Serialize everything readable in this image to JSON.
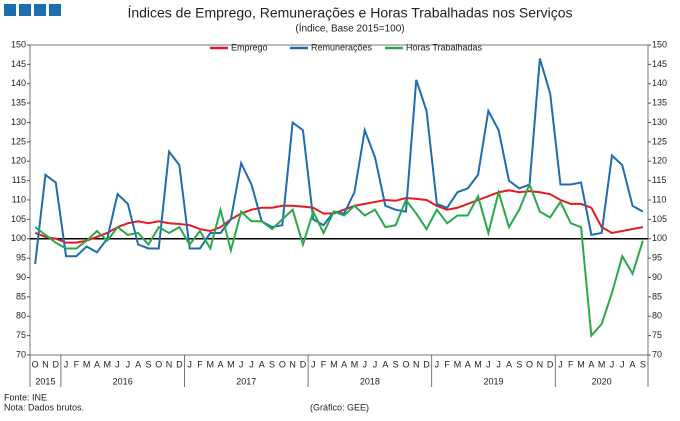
{
  "chart_data": {
    "type": "line",
    "title": "Índices de Emprego, Remunerações e Horas Trabalhadas nos Serviços",
    "subtitle": "(Índice, Base 2015=100)",
    "categories": [
      "O",
      "N",
      "D",
      "J",
      "F",
      "M",
      "A",
      "M",
      "J",
      "J",
      "A",
      "S",
      "O",
      "N",
      "D",
      "J",
      "F",
      "M",
      "A",
      "M",
      "J",
      "J",
      "A",
      "S",
      "O",
      "N",
      "D",
      "J",
      "F",
      "M",
      "A",
      "M",
      "J",
      "J",
      "A",
      "S",
      "O",
      "N",
      "D",
      "J",
      "F",
      "M",
      "A",
      "M",
      "J",
      "J",
      "A",
      "S",
      "O",
      "N",
      "D",
      "J",
      "F",
      "M",
      "A",
      "M",
      "J",
      "J",
      "A",
      "S"
    ],
    "year_labels": [
      "2015",
      null,
      null,
      "2016",
      null,
      null,
      null,
      null,
      null,
      null,
      null,
      null,
      null,
      null,
      null,
      "2017",
      null,
      null,
      null,
      null,
      null,
      null,
      null,
      null,
      null,
      null,
      null,
      "2018",
      null,
      null,
      null,
      null,
      null,
      null,
      null,
      null,
      null,
      null,
      null,
      "2019",
      null,
      null,
      null,
      null,
      null,
      null,
      null,
      null,
      null,
      null,
      null,
      "2020",
      null,
      null,
      null,
      null,
      null,
      null,
      null,
      null
    ],
    "series": [
      {
        "name": "Emprego",
        "color": "#e8191c",
        "values": [
          101.5,
          100.5,
          100,
          99,
          99,
          99.5,
          100.5,
          101.5,
          103,
          104,
          104.5,
          104,
          104.5,
          104,
          103.8,
          103.5,
          102.5,
          102,
          103,
          105,
          106.5,
          107.5,
          108,
          108,
          108.5,
          108.5,
          108.3,
          108,
          106.5,
          106.5,
          107.5,
          108.5,
          109,
          109.5,
          110,
          109.8,
          110.5,
          110.3,
          110,
          108.5,
          107.5,
          108,
          109,
          110,
          111,
          112,
          112.5,
          112,
          112.3,
          112,
          111.5,
          110,
          109,
          109,
          108,
          103,
          101.5,
          102,
          102.5,
          103
        ]
      },
      {
        "name": "Remunerações",
        "color": "#1f6cb0",
        "values": [
          93.5,
          116.5,
          114.5,
          95.5,
          95.5,
          98,
          96.5,
          100,
          111.5,
          109,
          98.5,
          97.5,
          97.5,
          122.5,
          119,
          97.5,
          97.5,
          101.5,
          101.5,
          105,
          119.5,
          114,
          104.5,
          103,
          103.5,
          130,
          128,
          105,
          103.5,
          107,
          106.5,
          112,
          128,
          121,
          108.5,
          107.5,
          107,
          141,
          133,
          109,
          108,
          112,
          113,
          116.5,
          133,
          128,
          115,
          113,
          114,
          146.5,
          137.5,
          114,
          114,
          114.5,
          101,
          101.5,
          121.5,
          119,
          108.5,
          107
        ]
      },
      {
        "name": "Horas Trabalhadas",
        "color": "#2aa84a",
        "values": [
          103,
          101,
          99,
          97.5,
          97.5,
          99.5,
          102,
          99.5,
          103,
          101,
          101.5,
          98.5,
          103,
          101.5,
          103,
          98.5,
          102,
          97.5,
          107.5,
          97,
          107,
          104.5,
          104.5,
          102.5,
          105,
          107.5,
          98.5,
          107,
          101.5,
          107,
          106,
          108.5,
          106,
          107.5,
          103,
          103.5,
          110,
          106.5,
          102.5,
          107.5,
          104,
          106,
          106,
          111,
          101.5,
          112,
          103,
          107.5,
          114,
          107,
          105.5,
          109.5,
          104,
          103,
          75,
          78,
          86,
          95.5,
          91,
          99.5
        ]
      }
    ],
    "ylim": [
      70,
      150
    ],
    "yticks": [
      70,
      75,
      80,
      85,
      90,
      95,
      100,
      105,
      110,
      115,
      120,
      125,
      130,
      135,
      140,
      145,
      150
    ],
    "reference_line": 100,
    "source": "Fonte: INE",
    "note": "Nota: Dados brutos.",
    "credit": "(Gráfico: GEE)"
  }
}
